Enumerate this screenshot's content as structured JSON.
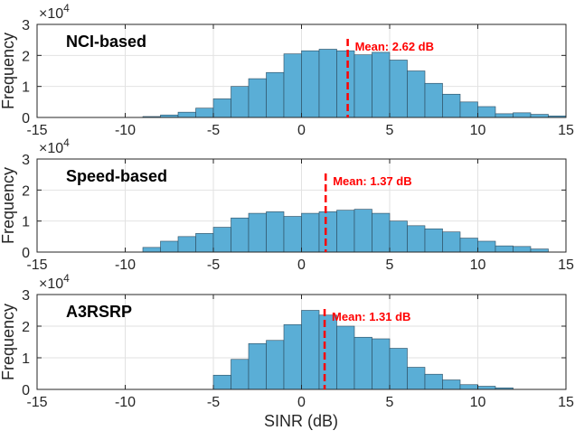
{
  "figure": {
    "xlabel": "SINR (dB)",
    "ylabel": "Frequency",
    "exponent_label": "×10",
    "exponent_power": "4"
  },
  "colors": {
    "bar_fill": "#5aaed6",
    "bar_edge": "#2c4a5e",
    "mean_line": "#ff0000",
    "grid": "#e2e2e2",
    "axis": "#262626"
  },
  "chart_data": [
    {
      "type": "bar",
      "panel_label": "NCI-based",
      "mean_label": "Mean: 2.62 dB",
      "mean_value": 2.62,
      "xlim": [
        -15,
        15
      ],
      "ylim": [
        0,
        3
      ],
      "xticks": [
        "-15",
        "-10",
        "-5",
        "0",
        "5",
        "10",
        "15"
      ],
      "yticks": [
        "0",
        "1",
        "2",
        "3"
      ],
      "bin_width": 1,
      "bin_starts": [
        -9,
        -8,
        -7,
        -6,
        -5,
        -4,
        -3,
        -2,
        -1,
        0,
        1,
        2,
        3,
        4,
        5,
        6,
        7,
        8,
        9,
        10,
        11,
        12,
        13,
        14
      ],
      "values": [
        0.03,
        0.08,
        0.17,
        0.3,
        0.6,
        1.0,
        1.25,
        1.45,
        2.05,
        2.15,
        2.2,
        2.15,
        2.02,
        2.1,
        1.85,
        1.5,
        1.1,
        0.75,
        0.5,
        0.35,
        0.12,
        0.15,
        0.1,
        0.05
      ]
    },
    {
      "type": "bar",
      "panel_label": "Speed-based",
      "mean_label": "Mean: 1.37 dB",
      "mean_value": 1.37,
      "xlim": [
        -15,
        15
      ],
      "ylim": [
        0,
        3
      ],
      "xticks": [
        "-15",
        "-10",
        "-5",
        "0",
        "5",
        "10",
        "15"
      ],
      "yticks": [
        "0",
        "1",
        "2",
        "3"
      ],
      "bin_width": 1,
      "bin_starts": [
        -9,
        -8,
        -7,
        -6,
        -5,
        -4,
        -3,
        -2,
        -1,
        0,
        1,
        2,
        3,
        4,
        5,
        6,
        7,
        8,
        9,
        10,
        11,
        12,
        13
      ],
      "values": [
        0.15,
        0.35,
        0.5,
        0.6,
        0.8,
        1.1,
        1.25,
        1.3,
        1.15,
        1.25,
        1.3,
        1.35,
        1.38,
        1.25,
        1.0,
        0.85,
        0.75,
        0.65,
        0.45,
        0.35,
        0.2,
        0.18,
        0.1
      ]
    },
    {
      "type": "bar",
      "panel_label": "A3RSRP",
      "mean_label": "Mean: 1.31 dB",
      "mean_value": 1.31,
      "xlim": [
        -15,
        15
      ],
      "ylim": [
        0,
        3
      ],
      "xticks": [
        "-15",
        "-10",
        "-5",
        "0",
        "5",
        "10",
        "15"
      ],
      "yticks": [
        "0",
        "1",
        "2",
        "3"
      ],
      "bin_width": 1,
      "bin_starts": [
        -5,
        -4,
        -3,
        -2,
        -1,
        0,
        1,
        2,
        3,
        4,
        5,
        6,
        7,
        8,
        9,
        10,
        11
      ],
      "values": [
        0.45,
        0.95,
        1.45,
        1.55,
        2.05,
        2.5,
        2.35,
        2.0,
        1.65,
        1.6,
        1.3,
        0.7,
        0.48,
        0.3,
        0.15,
        0.1,
        0.05
      ]
    }
  ]
}
